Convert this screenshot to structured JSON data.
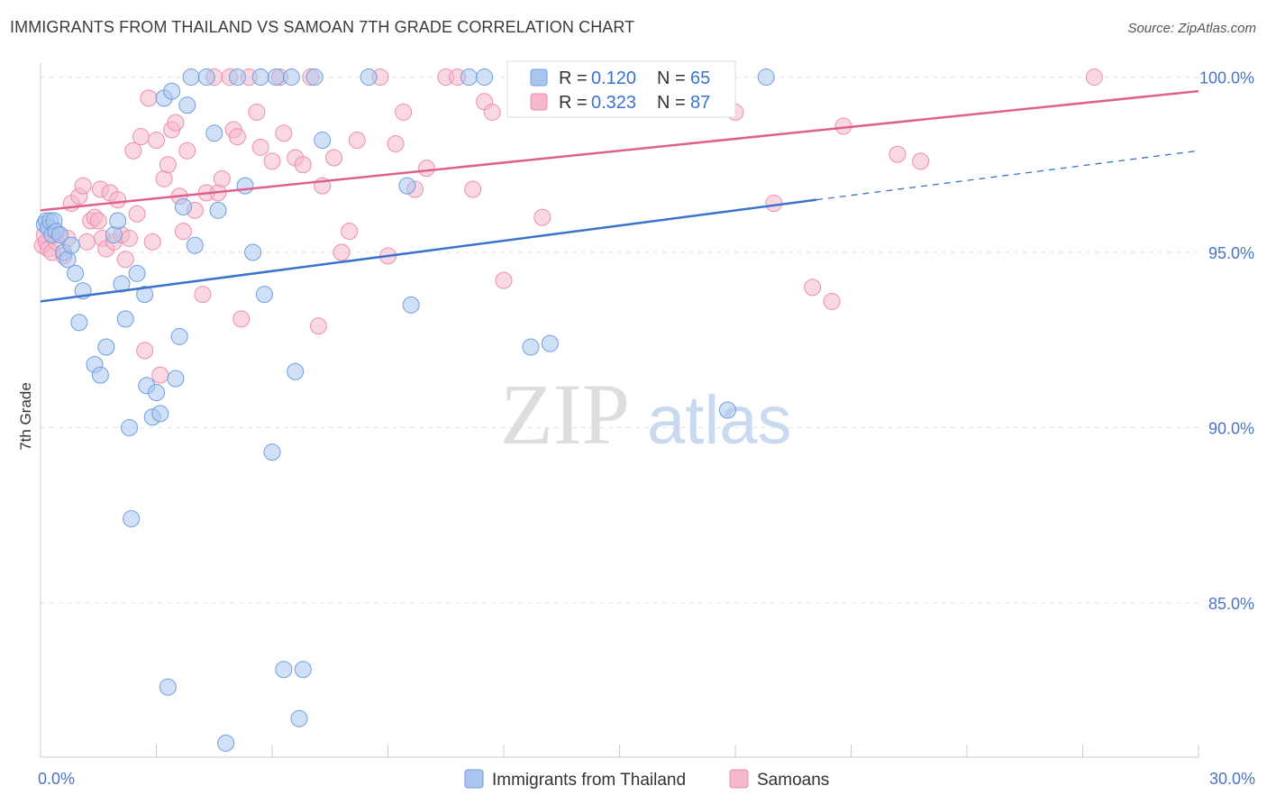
{
  "header": {
    "title": "IMMIGRANTS FROM THAILAND VS SAMOAN 7TH GRADE CORRELATION CHART",
    "source": "Source: ZipAtlas.com"
  },
  "watermark": {
    "zip": "ZIP",
    "atlas": "atlas"
  },
  "colors": {
    "blue": "#a9c6ef",
    "blue_stroke": "#6f9ee0",
    "blue_line": "#3a72cc",
    "pink": "#f5b8cb",
    "pink_stroke": "#eb8fac",
    "pink_line": "#e0608c",
    "tick_text": "#4a74c4",
    "grid": "#e3e3e3"
  },
  "chart_data": {
    "type": "scatter",
    "title": "IMMIGRANTS FROM THAILAND VS SAMOAN 7TH GRADE CORRELATION CHART",
    "xlabel": "",
    "ylabel": "7th Grade",
    "xlim": [
      0,
      30
    ],
    "ylim": [
      80.6,
      100.4
    ],
    "x_tick_labels": [
      {
        "value": 0,
        "label": "0.0%"
      },
      {
        "value": 30,
        "label": "30.0%"
      }
    ],
    "y_tick_labels": [
      {
        "value": 100,
        "label": "100.0%"
      },
      {
        "value": 95,
        "label": "95.0%"
      },
      {
        "value": 90,
        "label": "90.0%"
      },
      {
        "value": 85,
        "label": "85.0%"
      }
    ],
    "grid": true,
    "legend_placement": "top-center",
    "stats": [
      {
        "r_label": "R = ",
        "r_value": "0.120",
        "n_label": "N = ",
        "n_value": "65"
      },
      {
        "r_label": "R = ",
        "r_value": "0.323",
        "n_label": "N = ",
        "n_value": "87"
      }
    ],
    "series": [
      {
        "name": "Immigrants from Thailand",
        "color": "#a9c6ef",
        "trend": {
          "x": [
            0,
            20.1
          ],
          "y": [
            93.6,
            96.5
          ],
          "dashed_to": [
            30,
            97.9
          ]
        },
        "points": [
          [
            0.1,
            95.8
          ],
          [
            0.15,
            95.9
          ],
          [
            0.2,
            95.7
          ],
          [
            0.25,
            95.9
          ],
          [
            0.3,
            95.5
          ],
          [
            0.35,
            95.9
          ],
          [
            0.4,
            95.6
          ],
          [
            0.5,
            95.5
          ],
          [
            0.6,
            95.0
          ],
          [
            0.7,
            94.8
          ],
          [
            0.8,
            95.2
          ],
          [
            0.9,
            94.4
          ],
          [
            1.0,
            93.0
          ],
          [
            1.1,
            93.9
          ],
          [
            1.4,
            91.8
          ],
          [
            1.55,
            91.5
          ],
          [
            1.7,
            92.3
          ],
          [
            1.9,
            95.5
          ],
          [
            2.0,
            95.9
          ],
          [
            2.1,
            94.1
          ],
          [
            2.2,
            93.1
          ],
          [
            2.3,
            90.0
          ],
          [
            2.35,
            87.4
          ],
          [
            2.5,
            94.4
          ],
          [
            2.7,
            93.8
          ],
          [
            2.75,
            91.2
          ],
          [
            2.9,
            90.3
          ],
          [
            3.0,
            91.0
          ],
          [
            3.1,
            90.4
          ],
          [
            3.2,
            99.4
          ],
          [
            3.3,
            82.6
          ],
          [
            3.4,
            99.6
          ],
          [
            3.5,
            91.4
          ],
          [
            3.6,
            92.6
          ],
          [
            3.7,
            96.3
          ],
          [
            3.8,
            99.2
          ],
          [
            3.9,
            100.0
          ],
          [
            4.0,
            95.2
          ],
          [
            4.3,
            100.0
          ],
          [
            4.5,
            98.4
          ],
          [
            4.6,
            96.2
          ],
          [
            4.8,
            81.0
          ],
          [
            5.1,
            100.0
          ],
          [
            5.3,
            96.9
          ],
          [
            5.5,
            95.0
          ],
          [
            5.7,
            100.0
          ],
          [
            5.8,
            93.8
          ],
          [
            6.0,
            89.3
          ],
          [
            6.1,
            100.0
          ],
          [
            6.3,
            83.1
          ],
          [
            6.5,
            100.0
          ],
          [
            6.6,
            91.6
          ],
          [
            6.7,
            81.7
          ],
          [
            6.8,
            83.1
          ],
          [
            7.1,
            100.0
          ],
          [
            7.3,
            98.2
          ],
          [
            8.5,
            100.0
          ],
          [
            9.5,
            96.9
          ],
          [
            9.6,
            93.5
          ],
          [
            11.1,
            100.0
          ],
          [
            11.5,
            100.0
          ],
          [
            12.7,
            92.3
          ],
          [
            13.2,
            92.4
          ],
          [
            17.8,
            90.5
          ],
          [
            18.8,
            100.0
          ]
        ]
      },
      {
        "name": "Samoans",
        "color": "#f5b8cb",
        "trend": {
          "x": [
            0,
            30
          ],
          "y": [
            96.2,
            99.6
          ]
        },
        "points": [
          [
            0.05,
            95.2
          ],
          [
            0.1,
            95.5
          ],
          [
            0.15,
            95.3
          ],
          [
            0.2,
            95.1
          ],
          [
            0.3,
            95.0
          ],
          [
            0.4,
            95.3
          ],
          [
            0.5,
            95.5
          ],
          [
            0.6,
            94.9
          ],
          [
            0.7,
            95.4
          ],
          [
            0.8,
            96.4
          ],
          [
            1.0,
            96.6
          ],
          [
            1.1,
            96.9
          ],
          [
            1.2,
            95.3
          ],
          [
            1.3,
            95.9
          ],
          [
            1.4,
            96.0
          ],
          [
            1.5,
            95.9
          ],
          [
            1.55,
            96.8
          ],
          [
            1.6,
            95.4
          ],
          [
            1.7,
            95.1
          ],
          [
            1.8,
            96.7
          ],
          [
            1.9,
            95.3
          ],
          [
            2.0,
            96.5
          ],
          [
            2.1,
            95.5
          ],
          [
            2.2,
            94.8
          ],
          [
            2.3,
            95.4
          ],
          [
            2.4,
            97.9
          ],
          [
            2.5,
            96.1
          ],
          [
            2.6,
            98.3
          ],
          [
            2.7,
            92.2
          ],
          [
            2.8,
            99.4
          ],
          [
            2.9,
            95.3
          ],
          [
            3.0,
            98.2
          ],
          [
            3.1,
            91.5
          ],
          [
            3.2,
            97.1
          ],
          [
            3.3,
            97.5
          ],
          [
            3.4,
            98.5
          ],
          [
            3.5,
            98.7
          ],
          [
            3.6,
            96.6
          ],
          [
            3.7,
            95.6
          ],
          [
            3.8,
            97.9
          ],
          [
            4.0,
            96.2
          ],
          [
            4.2,
            93.8
          ],
          [
            4.3,
            96.7
          ],
          [
            4.5,
            100.0
          ],
          [
            4.6,
            96.7
          ],
          [
            4.7,
            97.1
          ],
          [
            4.9,
            100.0
          ],
          [
            5.0,
            98.5
          ],
          [
            5.1,
            98.3
          ],
          [
            5.2,
            93.1
          ],
          [
            5.4,
            100.0
          ],
          [
            5.6,
            99.0
          ],
          [
            5.7,
            98.0
          ],
          [
            6.0,
            97.6
          ],
          [
            6.2,
            100.0
          ],
          [
            6.3,
            98.4
          ],
          [
            6.6,
            97.7
          ],
          [
            6.8,
            97.5
          ],
          [
            7.0,
            100.0
          ],
          [
            7.2,
            92.9
          ],
          [
            7.3,
            96.9
          ],
          [
            7.6,
            97.7
          ],
          [
            7.8,
            95.0
          ],
          [
            8.0,
            95.6
          ],
          [
            8.2,
            98.2
          ],
          [
            8.8,
            100.0
          ],
          [
            9.0,
            94.9
          ],
          [
            9.2,
            98.1
          ],
          [
            9.4,
            99.0
          ],
          [
            9.7,
            96.8
          ],
          [
            10.0,
            97.4
          ],
          [
            10.5,
            100.0
          ],
          [
            10.8,
            100.0
          ],
          [
            11.2,
            96.8
          ],
          [
            11.5,
            99.3
          ],
          [
            11.7,
            99.0
          ],
          [
            12.0,
            94.2
          ],
          [
            13.0,
            96.0
          ],
          [
            14.5,
            100.0
          ],
          [
            18.0,
            99.0
          ],
          [
            19.0,
            96.4
          ],
          [
            20.0,
            94.0
          ],
          [
            20.5,
            93.6
          ],
          [
            20.8,
            98.6
          ],
          [
            22.2,
            97.8
          ],
          [
            22.8,
            97.6
          ],
          [
            27.3,
            100.0
          ]
        ]
      }
    ]
  }
}
